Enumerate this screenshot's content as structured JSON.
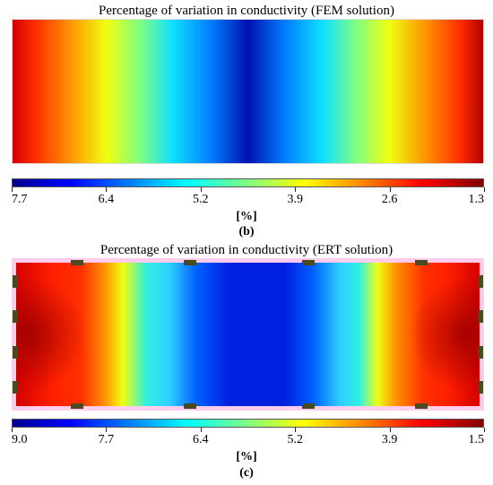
{
  "panel_b": {
    "title": "Percentage of variation in conductivity (FEM solution)",
    "colorbar_ticks": [
      "7.7",
      "6.4",
      "5.2",
      "3.9",
      "2.6",
      "1.3"
    ],
    "unit": "[%]",
    "label": "(b)"
  },
  "panel_c": {
    "title": "Percentage of variation in conductivity (ERT solution)",
    "colorbar_ticks": [
      "9.0",
      "7.7",
      "6.4",
      "5.2",
      "3.9",
      "1.5"
    ],
    "unit": "[%]",
    "label": "(c)",
    "electrode_count": 16
  },
  "colormap": "jet",
  "colors": {
    "electrode": "#4a4a20",
    "border": "#ffccee"
  }
}
